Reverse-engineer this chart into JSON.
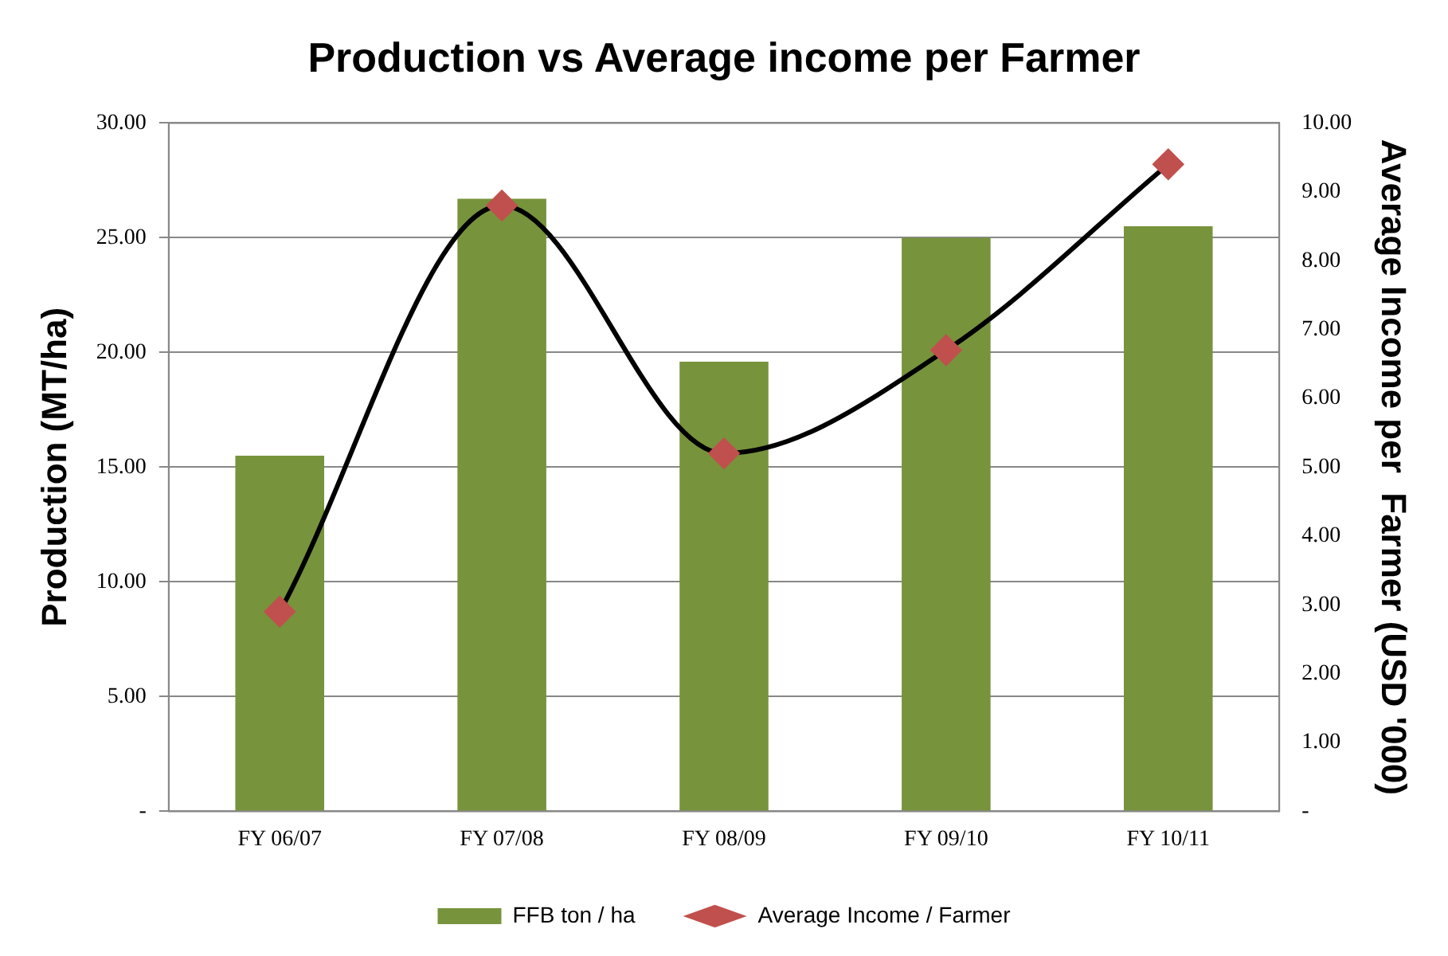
{
  "chart_data": {
    "type": "bar",
    "title": "Production vs Average income per Farmer",
    "categories": [
      "FY 06/07",
      "FY 07/08",
      "FY 08/09",
      "FY 09/10",
      "FY 10/11"
    ],
    "ylabel": "Production (MT/ha)",
    "y2label": "Average Income per  Farmer (USD '000)",
    "series": [
      {
        "name": "FFB ton / ha",
        "color": "#77933c",
        "values": [
          15.5,
          26.7,
          19.6,
          25.0,
          25.5
        ]
      },
      {
        "name": "Average Income / Farmer",
        "type": "line",
        "axis": "y2",
        "color": "#c0504d",
        "values": [
          2.9,
          8.8,
          5.2,
          6.7,
          9.4
        ]
      }
    ],
    "ylim": [
      0,
      30
    ],
    "yticks": [
      {
        "value": 0,
        "label": "-"
      },
      {
        "value": 5,
        "label": "5.00"
      },
      {
        "value": 10,
        "label": "10.00"
      },
      {
        "value": 15,
        "label": "15.00"
      },
      {
        "value": 20,
        "label": "20.00"
      },
      {
        "value": 25,
        "label": "25.00"
      },
      {
        "value": 30,
        "label": "30.00"
      }
    ],
    "y2lim": [
      0,
      10
    ],
    "y2ticks": [
      {
        "value": 0,
        "label": "-"
      },
      {
        "value": 1,
        "label": "1.00"
      },
      {
        "value": 2,
        "label": "2.00"
      },
      {
        "value": 3,
        "label": "3.00"
      },
      {
        "value": 4,
        "label": "4.00"
      },
      {
        "value": 5,
        "label": "5.00"
      },
      {
        "value": 6,
        "label": "6.00"
      },
      {
        "value": 7,
        "label": "7.00"
      },
      {
        "value": 8,
        "label": "8.00"
      },
      {
        "value": 9,
        "label": "9.00"
      },
      {
        "value": 10,
        "label": "10.00"
      }
    ],
    "grid": "y",
    "legend": "bottom",
    "marker": "diamond"
  }
}
